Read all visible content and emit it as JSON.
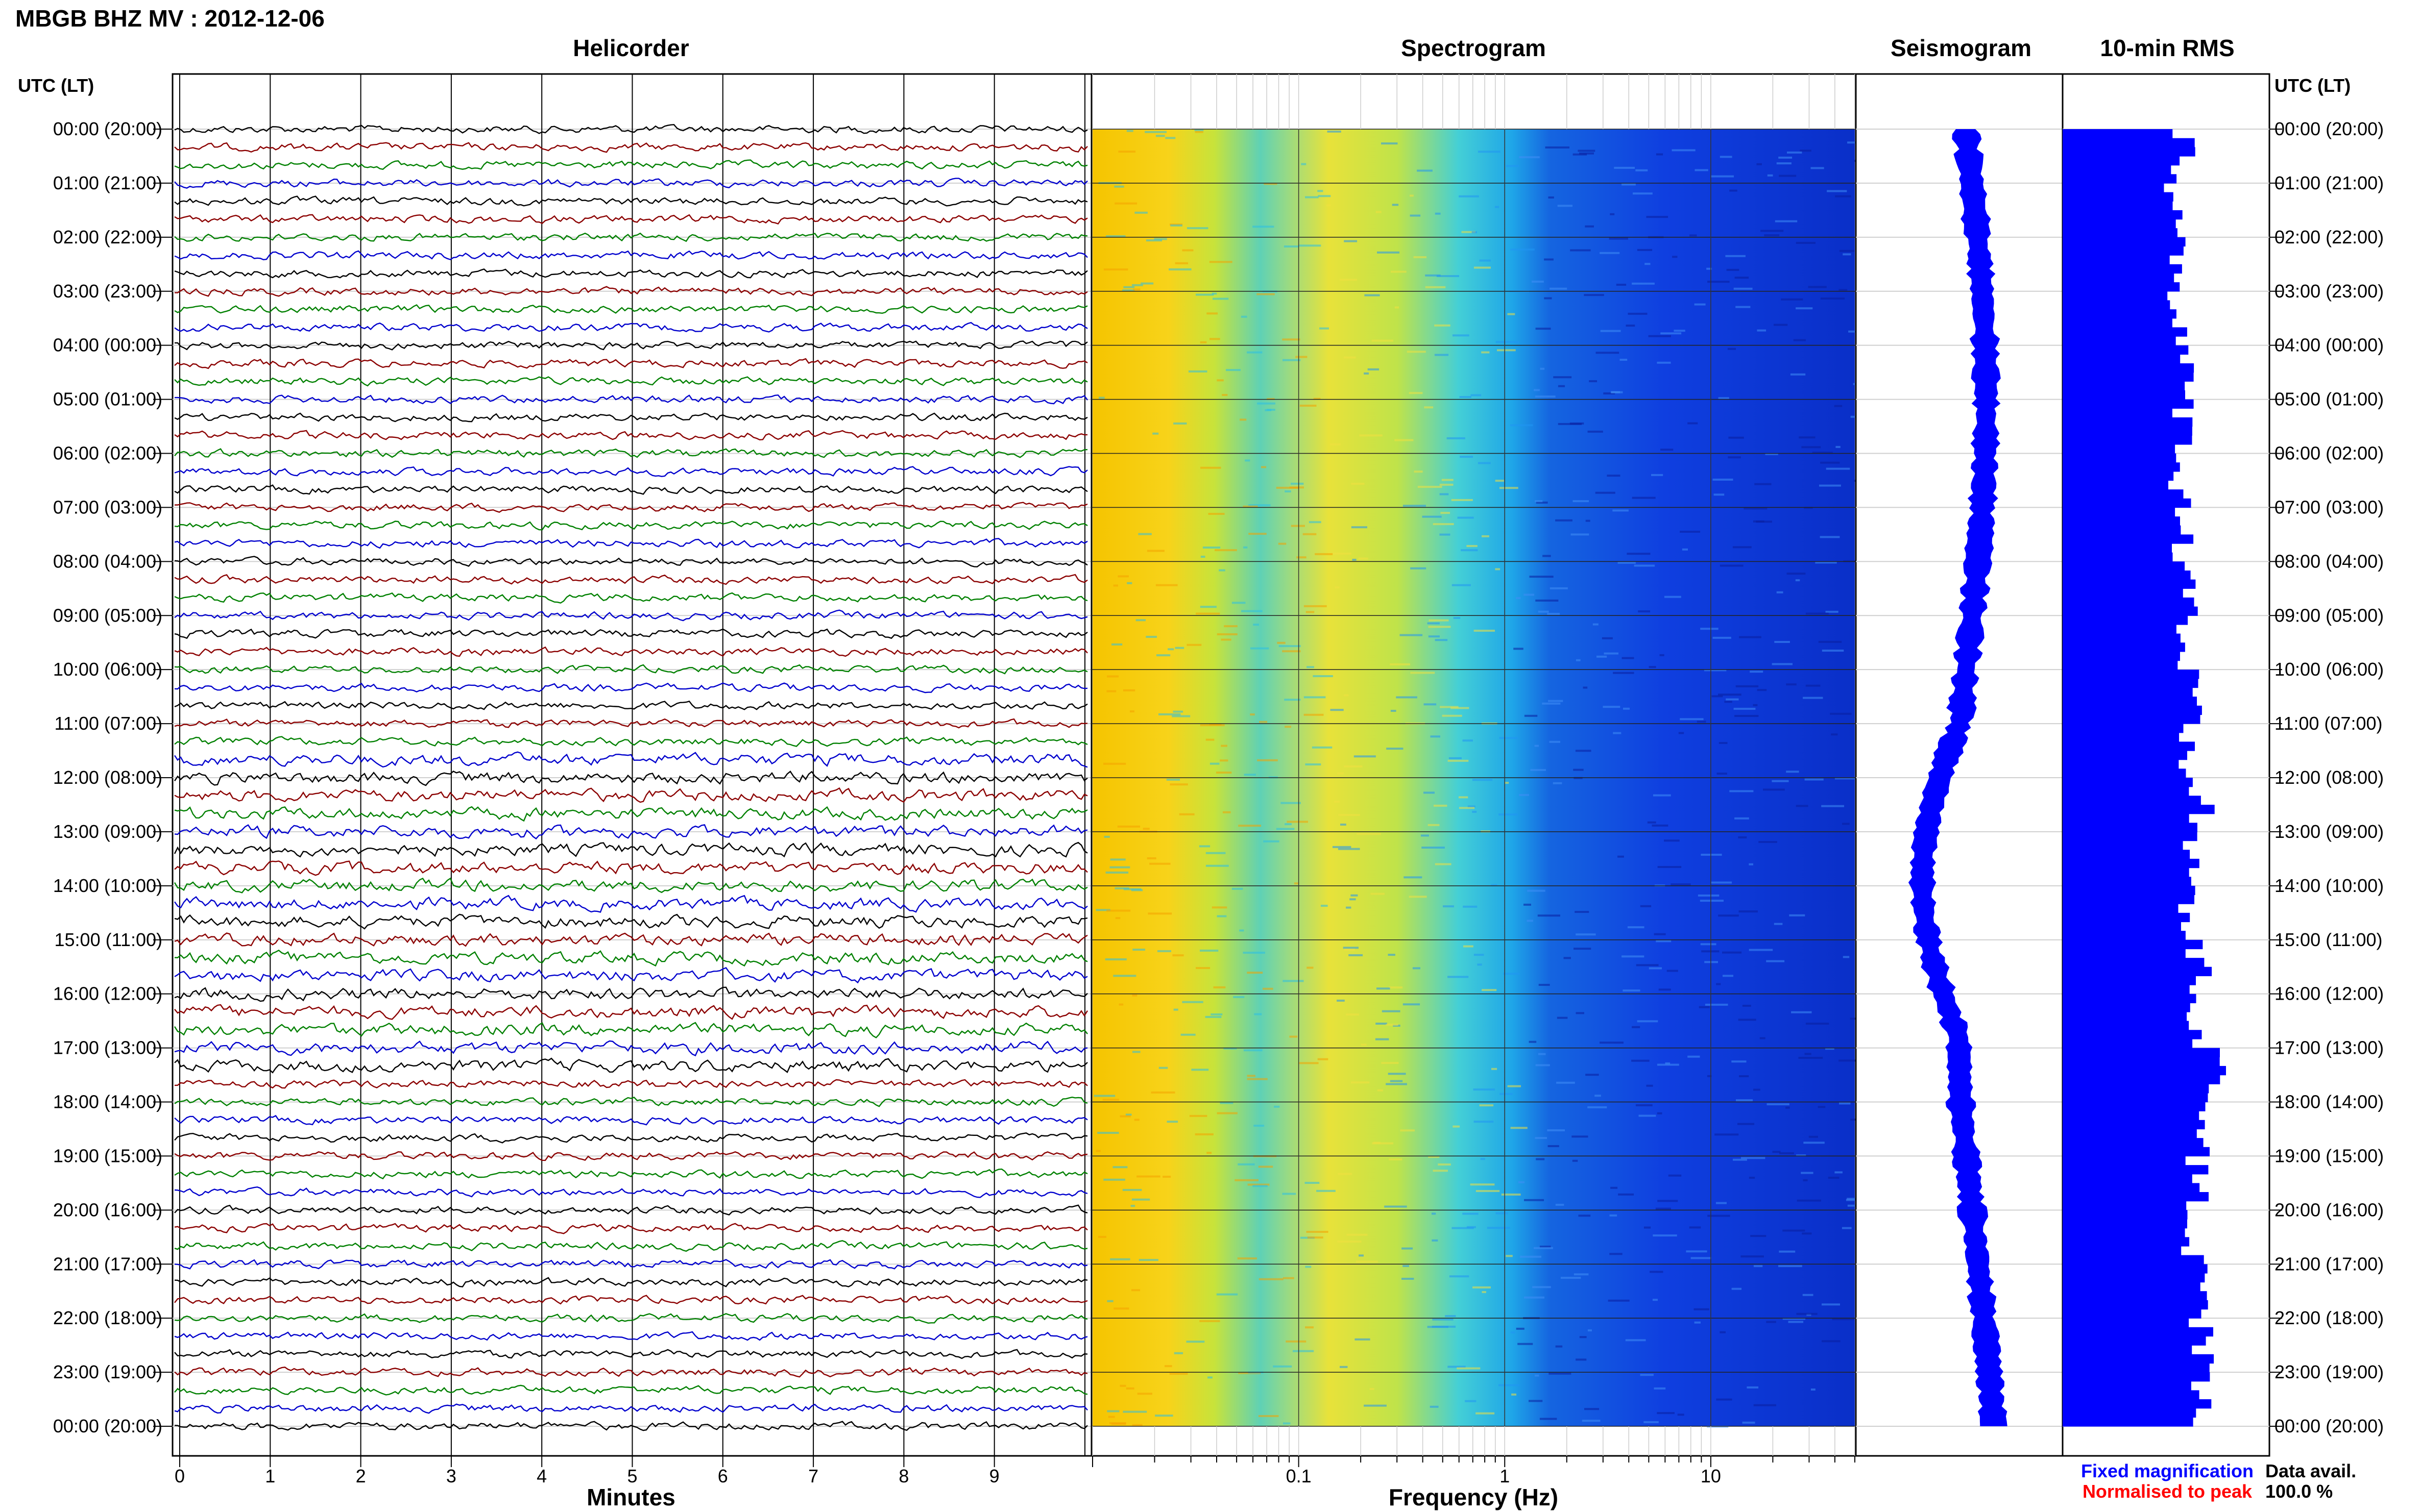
{
  "title": "MBGB BHZ MV : 2012-12-06",
  "panels": {
    "helicorder": "Helicorder",
    "spectrogram": "Spectrogram",
    "seismogram": "Seismogram",
    "rms": "10-min RMS"
  },
  "axis_labels": {
    "utc_left": "UTC (LT)",
    "utc_right": "UTC (LT)",
    "minutes": "Minutes",
    "frequency": "Frequency (Hz)"
  },
  "legend": {
    "fixed": "Fixed magnification",
    "normalised": "Normalised to peak",
    "fixed_color": "#0000ff",
    "normalised_color": "#ff0000"
  },
  "data_avail": {
    "label": "Data avail.",
    "value": "100.0 %"
  },
  "colors": {
    "trace_cycle": [
      "#000000",
      "#8b0000",
      "#008000",
      "#0000cd"
    ],
    "seismogram": "#0000ff",
    "rms": "#0000ff"
  },
  "chart_data": {
    "type": "table",
    "row_labels": [
      "00:00 (20:00)",
      "01:00 (21:00)",
      "02:00 (22:00)",
      "03:00 (23:00)",
      "04:00 (00:00)",
      "05:00 (01:00)",
      "06:00 (02:00)",
      "07:00 (03:00)",
      "08:00 (04:00)",
      "09:00 (05:00)",
      "10:00 (06:00)",
      "11:00 (07:00)",
      "12:00 (08:00)",
      "13:00 (09:00)",
      "14:00 (10:00)",
      "15:00 (11:00)",
      "16:00 (12:00)",
      "17:00 (13:00)",
      "18:00 (14:00)",
      "19:00 (15:00)",
      "20:00 (16:00)",
      "21:00 (17:00)",
      "22:00 (18:00)",
      "23:00 (19:00)",
      "00:00 (20:00)"
    ],
    "helicorder": {
      "x_ticks": [
        "0",
        "1",
        "2",
        "3",
        "4",
        "5",
        "6",
        "7",
        "8",
        "9"
      ],
      "xlim": [
        0,
        10
      ],
      "traces": 72
    },
    "spectrogram": {
      "x_scale": "log",
      "x_ticks": [
        "0.1",
        "1",
        "10"
      ],
      "xlim": [
        0.01,
        50
      ]
    },
    "rms": {
      "values": [
        0.75,
        0.7,
        0.72,
        0.72,
        0.74,
        0.76,
        0.73,
        0.75,
        0.8,
        0.75,
        0.78,
        0.74,
        0.85,
        0.8,
        0.77,
        0.83,
        0.78,
        1.0,
        0.85,
        0.82,
        0.8,
        0.92,
        0.85,
        0.88
      ]
    }
  }
}
